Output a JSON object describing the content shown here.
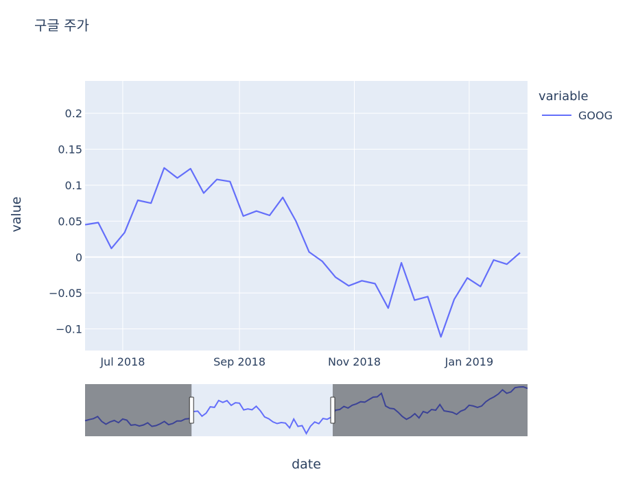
{
  "chart_data": {
    "type": "line",
    "title": "구글 주가",
    "xlabel": "date",
    "ylabel": "value",
    "x_tick_labels": [
      "Jul 2018",
      "Sep 2018",
      "Nov 2018",
      "Jan 2019"
    ],
    "y_tick_labels": [
      "0.2",
      "0.15",
      "0.1",
      "0.05",
      "0",
      "−0.05",
      "−0.1"
    ],
    "y_tick_values": [
      0.2,
      0.15,
      0.1,
      0.05,
      0,
      -0.05,
      -0.1
    ],
    "ylim": [
      -0.13,
      0.245
    ],
    "legend": {
      "title": "variable",
      "placement": "top-right"
    },
    "series": [
      {
        "name": "GOOG",
        "color": "#636efa",
        "x": [
          "2018-06-11",
          "2018-06-18",
          "2018-06-25",
          "2018-07-02",
          "2018-07-09",
          "2018-07-16",
          "2018-07-23",
          "2018-07-30",
          "2018-08-06",
          "2018-08-13",
          "2018-08-20",
          "2018-08-27",
          "2018-09-03",
          "2018-09-10",
          "2018-09-17",
          "2018-09-24",
          "2018-10-01",
          "2018-10-08",
          "2018-10-15",
          "2018-10-22",
          "2018-10-29",
          "2018-11-05",
          "2018-11-12",
          "2018-11-19",
          "2018-11-26",
          "2018-12-03",
          "2018-12-10",
          "2018-12-17",
          "2018-12-24",
          "2018-12-31",
          "2019-01-07",
          "2019-01-14",
          "2019-01-21",
          "2019-01-28"
        ],
        "values": [
          0.045,
          0.048,
          0.012,
          0.034,
          0.079,
          0.075,
          0.124,
          0.11,
          0.123,
          0.089,
          0.108,
          0.105,
          0.057,
          0.064,
          0.058,
          0.083,
          0.05,
          0.007,
          -0.006,
          -0.028,
          -0.04,
          -0.033,
          -0.037,
          -0.071,
          -0.008,
          -0.06,
          -0.055,
          -0.111,
          -0.059,
          -0.029,
          -0.041,
          -0.004,
          -0.01,
          0.006
        ]
      }
    ],
    "rangeslider": {
      "visible": true,
      "selected_range": [
        "2018-06-11",
        "2019-02-01"
      ],
      "full_series": [
        -0.02,
        -0.012,
        -0.005,
        0.01,
        -0.025,
        -0.045,
        -0.028,
        -0.018,
        -0.034,
        -0.008,
        -0.016,
        -0.052,
        -0.048,
        -0.058,
        -0.05,
        -0.035,
        -0.06,
        -0.055,
        -0.042,
        -0.025,
        -0.048,
        -0.04,
        -0.022,
        -0.022,
        -0.008,
        -0.005,
        0.045,
        0.048,
        0.012,
        0.034,
        0.079,
        0.075,
        0.124,
        0.11,
        0.123,
        0.089,
        0.108,
        0.105,
        0.057,
        0.064,
        0.058,
        0.083,
        0.05,
        0.007,
        -0.006,
        -0.028,
        -0.04,
        -0.033,
        -0.037,
        -0.071,
        -0.008,
        -0.06,
        -0.055,
        -0.111,
        -0.059,
        -0.029,
        -0.041,
        -0.004,
        -0.01,
        0.006,
        0.055,
        0.06,
        0.082,
        0.07,
        0.09,
        0.1,
        0.115,
        0.112,
        0.13,
        0.148,
        0.15,
        0.175,
        0.085,
        0.068,
        0.065,
        0.04,
        0.01,
        -0.01,
        0.005,
        0.03,
        0.0,
        0.045,
        0.035,
        0.06,
        0.055,
        0.095,
        0.05,
        0.045,
        0.04,
        0.025,
        0.048,
        0.06,
        0.09,
        0.085,
        0.075,
        0.085,
        0.115,
        0.135,
        0.15,
        0.17,
        0.2,
        0.175,
        0.185,
        0.215,
        0.22,
        0.221,
        0.21
      ]
    }
  }
}
